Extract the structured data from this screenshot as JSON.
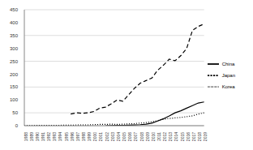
{
  "chart_data": {
    "type": "line",
    "categories": [
      "1988",
      "1989",
      "1990",
      "1991",
      "1992",
      "1993",
      "1994",
      "1995",
      "1996",
      "1997",
      "1998",
      "1999",
      "2000",
      "2001",
      "2002",
      "2003",
      "2004",
      "2005",
      "2006",
      "2007",
      "2008",
      "2009",
      "2010",
      "2011",
      "2012",
      "2013",
      "2014",
      "2015",
      "2016",
      "2017",
      "2018",
      "2019"
    ],
    "ylim": [
      0,
      450
    ],
    "yticks": [
      0,
      50,
      100,
      150,
      200,
      250,
      300,
      350,
      400,
      450
    ],
    "grid": true,
    "legend": "right",
    "series": [
      {
        "name": "China",
        "color": "#000000",
        "line_style": "solid",
        "values": [
          null,
          null,
          null,
          null,
          null,
          null,
          null,
          null,
          null,
          null,
          null,
          null,
          null,
          null,
          0,
          0.5,
          1,
          1.5,
          2,
          3,
          4,
          6,
          10,
          18,
          27,
          38,
          50,
          58,
          68,
          78,
          88,
          92
        ]
      },
      {
        "name": "Japan",
        "color": "#000000",
        "line_style": "dashed",
        "values": [
          null,
          null,
          null,
          null,
          null,
          null,
          null,
          null,
          45,
          50,
          48,
          50,
          55,
          68,
          72,
          85,
          100,
          95,
          120,
          145,
          165,
          175,
          185,
          215,
          235,
          258,
          252,
          272,
          300,
          370,
          385,
          395
        ]
      },
      {
        "name": "Korea",
        "color": "#000000",
        "line_style": "dotted",
        "values": [
          0.5,
          0.5,
          1,
          1,
          1,
          1.5,
          1.5,
          2,
          2,
          2.5,
          3,
          3,
          4,
          5,
          5,
          6,
          5,
          6,
          7,
          8,
          10,
          12,
          15,
          20,
          25,
          28,
          30,
          32,
          35,
          38,
          45,
          50
        ]
      }
    ]
  }
}
